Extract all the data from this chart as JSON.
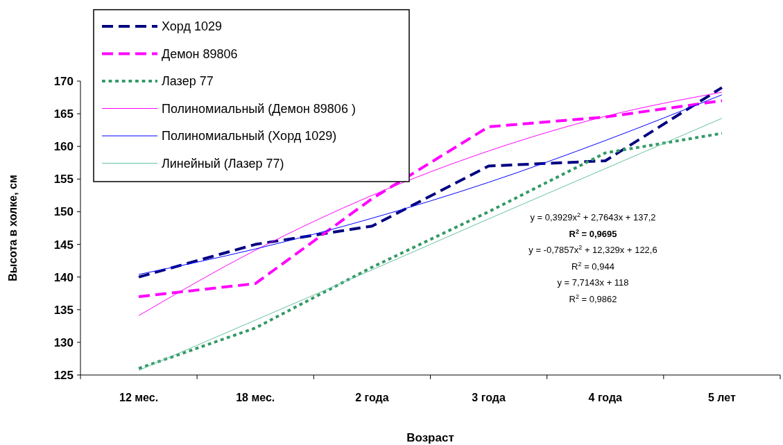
{
  "chart_data": {
    "type": "line",
    "xlabel": "Возраст",
    "ylabel": "Высота в холке, см",
    "categories": [
      "12 мес.",
      "18 мес.",
      "2 года",
      "3 года",
      "4 года",
      "5 лет"
    ],
    "ylim": [
      125,
      170
    ],
    "yticks": [
      125,
      130,
      135,
      140,
      145,
      150,
      155,
      160,
      165,
      170
    ],
    "grid": false,
    "legend": "top left",
    "marker": "none",
    "series": [
      {
        "name": "Хорд 1029",
        "color": "#000080",
        "line_style": "dashed",
        "values": [
          140,
          145,
          147.8,
          157,
          157.8,
          169
        ]
      },
      {
        "name": "Демон 89806",
        "color": "#ff00ff",
        "line_style": "dashed",
        "values": [
          137,
          139,
          152,
          163,
          164.5,
          167
        ]
      },
      {
        "name": "Лазер 77",
        "color": "#339966",
        "line_style": "dotted",
        "values": [
          126,
          132.2,
          141.5,
          150,
          159,
          162
        ]
      },
      {
        "name": "Полиномиальный (Демон 89806 )",
        "color": "#ff00ff",
        "line_style": "solid",
        "values": [
          134.1,
          144.1,
          152.5,
          159.3,
          164.6,
          168.3
        ]
      },
      {
        "name": "Полиномиальный (Хорд 1029)",
        "color": "#0000ff",
        "line_style": "solid",
        "values": [
          140.4,
          144.3,
          149,
          154.5,
          160.9,
          167.9
        ]
      },
      {
        "name": "Линейный (Лазер 77)",
        "color": "#66c2a0",
        "line_style": "solid",
        "values": [
          125.7,
          133.4,
          141.1,
          148.9,
          156.6,
          164.3
        ]
      }
    ],
    "annotations": [
      "y = 0,3929x$^{2}$ + 2,7643x + 137,2",
      "R$^{2}$ = 0,9695",
      "y = -0,7857x$^{2}$ + 12,329x + 122,6",
      "R$^{2}$ = 0,944",
      "y = 7,7143x + 118",
      "R$^{2}$ = 0,9862"
    ]
  }
}
